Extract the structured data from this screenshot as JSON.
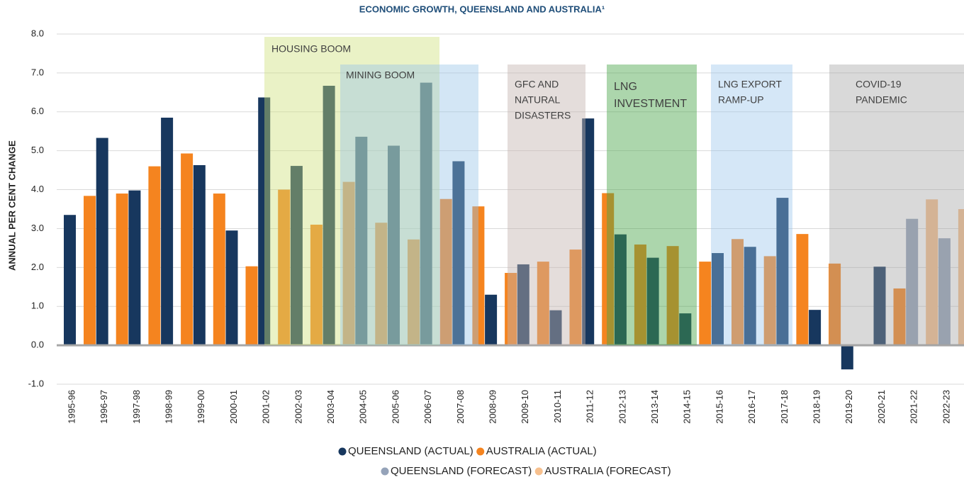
{
  "chart_data": {
    "type": "bar",
    "title": "ECONOMIC GROWTH, QUEENSLAND AND AUSTRALIA¹",
    "y_label": "ANNUAL PER CENT CHANGE",
    "categories": [
      "1995-96",
      "1996-97",
      "1997-98",
      "1998-99",
      "1999-00",
      "2000-01",
      "2001-02",
      "2002-03",
      "2003-04",
      "2004-05",
      "2005-06",
      "2006-07",
      "2007-08",
      "2008-09",
      "2009-10",
      "2010-11",
      "2011-12",
      "2012-13",
      "2013-14",
      "2014-15",
      "2015-16",
      "2016-17",
      "2017-18",
      "2018-19",
      "2019-20",
      "2020-21",
      "2021-22",
      "2022-23"
    ],
    "series": [
      {
        "name": "QUEENSLAND (ACTUAL)",
        "color": "#17375e",
        "slot": 0,
        "values": [
          3.35,
          5.33,
          3.98,
          5.85,
          4.63,
          2.95,
          6.37,
          4.61,
          6.67,
          5.36,
          5.13,
          6.75,
          4.73,
          1.3,
          2.08,
          0.9,
          5.83,
          2.85,
          2.25,
          0.82,
          2.37,
          2.53,
          3.79,
          0.91,
          -0.62,
          2.02,
          null,
          null
        ]
      },
      {
        "name": "AUSTRALIA (ACTUAL)",
        "color": "#f5841f",
        "slot": 1,
        "values": [
          3.84,
          3.9,
          4.6,
          4.93,
          3.9,
          2.03,
          4.0,
          3.1,
          4.2,
          3.15,
          2.72,
          3.76,
          3.57,
          1.86,
          2.15,
          2.46,
          3.91,
          2.59,
          2.55,
          2.15,
          2.73,
          2.29,
          2.86,
          2.1,
          null,
          1.46,
          null,
          null
        ]
      },
      {
        "name": "QUEENSLAND (FORECAST)",
        "color": "#95a3b9",
        "slot": 0,
        "values": [
          null,
          null,
          null,
          null,
          null,
          null,
          null,
          null,
          null,
          null,
          null,
          null,
          null,
          null,
          null,
          null,
          null,
          null,
          null,
          null,
          null,
          null,
          null,
          null,
          null,
          null,
          3.25,
          2.75
        ]
      },
      {
        "name": "AUSTRALIA (FORECAST)",
        "color": "#f7c08e",
        "slot": 1,
        "values": [
          null,
          null,
          null,
          null,
          null,
          null,
          null,
          null,
          null,
          null,
          null,
          null,
          null,
          null,
          null,
          null,
          null,
          null,
          null,
          null,
          null,
          null,
          null,
          null,
          null,
          null,
          3.75,
          3.5
        ]
      }
    ],
    "regions": [
      {
        "label": [
          "HOUSING BOOM"
        ],
        "color": "rgba(205,225,120,0.42)"
      },
      {
        "label": [
          "MINING BOOM"
        ],
        "color": "rgba(150,195,230,0.42)"
      },
      {
        "label": [
          "GFC AND",
          "NATURAL",
          "DISASTERS"
        ],
        "color": "rgba(195,180,175,0.45)"
      },
      {
        "label": [
          "LNG",
          "INVESTMENT"
        ],
        "color": "rgba(70,165,70,0.45)"
      },
      {
        "label": [
          "LNG EXPORT",
          "RAMP-UP"
        ],
        "color": "rgba(150,195,235,0.4)"
      },
      {
        "label": [
          "COVID-19",
          "PANDEMIC"
        ],
        "color": "rgba(160,160,160,0.4)"
      }
    ],
    "ylim": [
      -1,
      8
    ],
    "yticks": [
      {
        "value": -1,
        "label": "-1.0"
      },
      {
        "value": 0,
        "label": "0.0"
      },
      {
        "value": 1,
        "label": "1.0"
      },
      {
        "value": 2,
        "label": "2.0"
      },
      {
        "value": 3,
        "label": "3.0"
      },
      {
        "value": 4,
        "label": "4.0"
      },
      {
        "value": 5,
        "label": "5.0"
      },
      {
        "value": 6,
        "label": "6.0"
      },
      {
        "value": 7,
        "label": "7.0"
      },
      {
        "value": 8,
        "label": "8.0"
      }
    ],
    "grid": true
  }
}
